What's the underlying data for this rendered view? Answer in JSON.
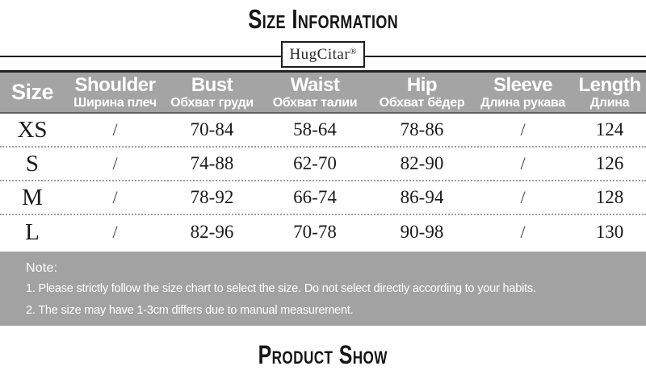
{
  "title": "Size Information",
  "brand": {
    "name": "HugCitar",
    "mark": "®"
  },
  "table": {
    "columns": [
      {
        "en": "Size",
        "ru": ""
      },
      {
        "en": "Shoulder",
        "ru": "Ширина плеч"
      },
      {
        "en": "Bust",
        "ru": "Обхват груди"
      },
      {
        "en": "Waist",
        "ru": "Обхват талии"
      },
      {
        "en": "Hip",
        "ru": "Обхват бёдер"
      },
      {
        "en": "Sleeve",
        "ru": "Длина рукава"
      },
      {
        "en": "Length",
        "ru": "Длина"
      }
    ],
    "rows": [
      {
        "size": "XS",
        "shoulder": "/",
        "bust": "70-84",
        "waist": "58-64",
        "hip": "78-86",
        "sleeve": "/",
        "length": "124"
      },
      {
        "size": "S",
        "shoulder": "/",
        "bust": "74-88",
        "waist": "62-70",
        "hip": "82-90",
        "sleeve": "/",
        "length": "126"
      },
      {
        "size": "M",
        "shoulder": "/",
        "bust": "78-92",
        "waist": "66-74",
        "hip": "86-94",
        "sleeve": "/",
        "length": "128"
      },
      {
        "size": "L",
        "shoulder": "/",
        "bust": "82-96",
        "waist": "70-78",
        "hip": "90-98",
        "sleeve": "/",
        "length": "130"
      }
    ]
  },
  "note": {
    "label": "Note:",
    "lines": [
      "1. Please strictly follow the size chart to select the size. Do not select directly according to your habits.",
      "2. The size may have 1-3cm differs due to manual measurement."
    ]
  },
  "footer_title": "Product Show",
  "colors": {
    "header_bg": "#a4a4a4",
    "note_bg": "#a2a2a2",
    "line": "#242424",
    "text_on_gray": "#ffffff",
    "body_text": "#1a1a1a"
  }
}
